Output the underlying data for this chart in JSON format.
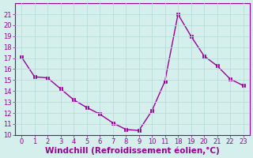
{
  "x_labels": [
    "0",
    "1",
    "2",
    "3",
    "4",
    "5",
    "6",
    "7",
    "8",
    "9",
    "10",
    "11",
    "18",
    "19",
    "20",
    "21",
    "22",
    "23"
  ],
  "y": [
    17.1,
    15.3,
    15.2,
    14.2,
    13.2,
    12.5,
    11.9,
    11.1,
    10.5,
    10.4,
    12.2,
    14.9,
    21.0,
    19.0,
    17.2,
    16.3,
    15.1,
    14.5
  ],
  "line_color": "#990099",
  "marker": "s",
  "marker_size": 2.5,
  "bg_color": "#d4efec",
  "grid_color": "#b8ddd9",
  "xlabel": "Windchill (Refroidissement éolien,°C)",
  "xlabel_color": "#990099",
  "xlabel_fontsize": 7.5,
  "ylim": [
    10,
    22
  ],
  "yticks": [
    10,
    11,
    12,
    13,
    14,
    15,
    16,
    17,
    18,
    19,
    20,
    21
  ],
  "tick_color": "#990099",
  "tick_fontsize": 6,
  "spine_color": "#990099",
  "line_width": 1.0,
  "xlabel_fontweight": "bold"
}
